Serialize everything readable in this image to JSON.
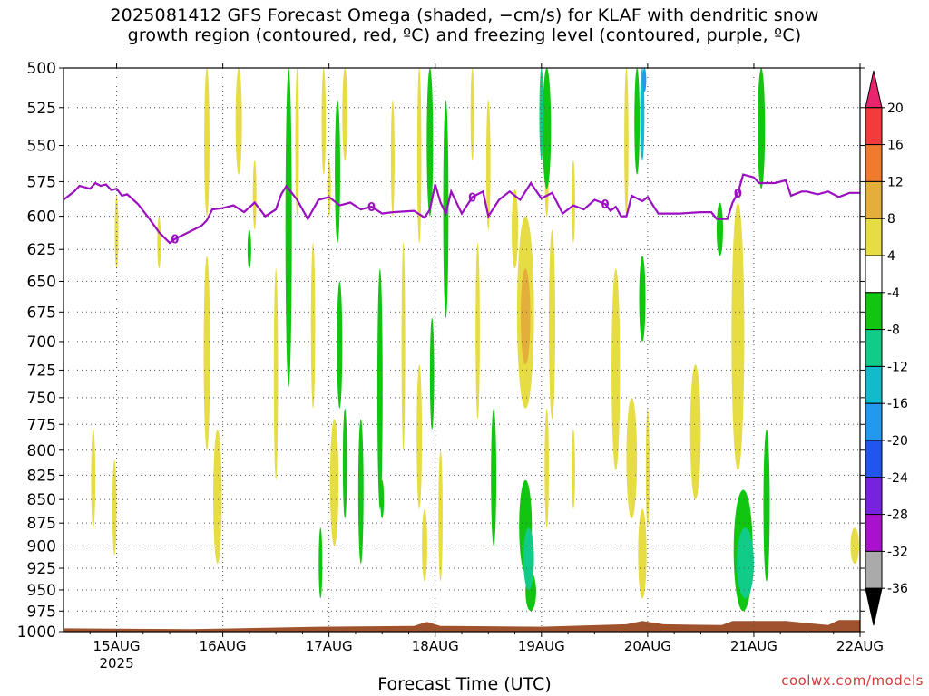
{
  "title_line1": "2025081412 GFS Forecast Omega (shaded, −cm/s) for KLAF with dendritic snow",
  "title_line2": "growth region (contoured, red, ºC) and freezing level (contoured, purple, ºC)",
  "xlabel": "Forecast Time (UTC)",
  "credit": "coolwx.com/models",
  "chart_data": {
    "type": "heatmap",
    "y_axis": {
      "label": "",
      "ticks": [
        500,
        525,
        550,
        575,
        600,
        625,
        650,
        675,
        700,
        725,
        750,
        775,
        800,
        825,
        850,
        875,
        900,
        925,
        950,
        975,
        1000
      ],
      "range": [
        500,
        1000
      ],
      "scale": "log-pressure",
      "inverted": true
    },
    "x_axis": {
      "ticks": [
        {
          "date": "15AUG",
          "year": "2025",
          "day": 15
        },
        {
          "date": "16AUG",
          "day": 16
        },
        {
          "date": "17AUG",
          "day": 17
        },
        {
          "date": "18AUG",
          "day": 18
        },
        {
          "date": "19AUG",
          "day": 19
        },
        {
          "date": "20AUG",
          "day": 20
        },
        {
          "date": "21AUG",
          "day": 21
        },
        {
          "date": "22AUG",
          "day": 22
        }
      ],
      "range": [
        "2025-08-14 12Z",
        "2025-08-22 00Z"
      ]
    },
    "grid": true,
    "colorbar": {
      "levels": [
        "20",
        "16",
        "12",
        "8",
        "4",
        "-4",
        "-8",
        "-12",
        "-16",
        "-20",
        "-24",
        "-28",
        "-32",
        "-36"
      ],
      "colors": [
        "#e8246e",
        "#f23c3c",
        "#f07a2d",
        "#e4ae3a",
        "#e6dc44",
        "#ffffff",
        "#11c511",
        "#11cc88",
        "#11bbcc",
        "#2299ee",
        "#2255ee",
        "#7722dd",
        "#aa11cc",
        "#aaaaaa",
        "#000000"
      ]
    },
    "freezing_level": {
      "label": "0",
      "color": "#9a10c0",
      "points": [
        [
          14.5,
          588
        ],
        [
          14.6,
          582
        ],
        [
          14.65,
          578
        ],
        [
          14.75,
          580
        ],
        [
          14.8,
          576
        ],
        [
          14.85,
          578
        ],
        [
          14.9,
          577
        ],
        [
          14.95,
          581
        ],
        [
          15.0,
          580
        ],
        [
          15.05,
          585
        ],
        [
          15.1,
          584
        ],
        [
          15.2,
          591
        ],
        [
          15.3,
          601
        ],
        [
          15.4,
          612
        ],
        [
          15.5,
          620
        ],
        [
          15.55,
          617
        ],
        [
          15.7,
          611
        ],
        [
          15.8,
          607
        ],
        [
          15.85,
          603
        ],
        [
          15.9,
          595
        ],
        [
          16.0,
          594
        ],
        [
          16.1,
          592
        ],
        [
          16.2,
          597
        ],
        [
          16.3,
          590
        ],
        [
          16.4,
          600
        ],
        [
          16.5,
          595
        ],
        [
          16.55,
          584
        ],
        [
          16.6,
          578
        ],
        [
          16.7,
          588
        ],
        [
          16.8,
          602
        ],
        [
          16.9,
          588
        ],
        [
          17.0,
          586
        ],
        [
          17.1,
          592
        ],
        [
          17.2,
          590
        ],
        [
          17.3,
          595
        ],
        [
          17.4,
          593
        ],
        [
          17.5,
          598
        ],
        [
          17.6,
          597
        ],
        [
          17.8,
          596
        ],
        [
          17.9,
          601
        ],
        [
          17.95,
          595
        ],
        [
          18.0,
          577
        ],
        [
          18.05,
          590
        ],
        [
          18.1,
          598
        ],
        [
          18.15,
          582
        ],
        [
          18.25,
          598
        ],
        [
          18.35,
          586
        ],
        [
          18.45,
          582
        ],
        [
          18.5,
          600
        ],
        [
          18.6,
          588
        ],
        [
          18.7,
          582
        ],
        [
          18.8,
          588
        ],
        [
          18.9,
          576
        ],
        [
          19.0,
          587
        ],
        [
          19.1,
          583
        ],
        [
          19.2,
          598
        ],
        [
          19.3,
          592
        ],
        [
          19.4,
          595
        ],
        [
          19.5,
          588
        ],
        [
          19.6,
          591
        ],
        [
          19.65,
          596
        ],
        [
          19.7,
          593
        ],
        [
          19.75,
          600
        ],
        [
          19.8,
          600
        ],
        [
          19.85,
          585
        ],
        [
          19.95,
          589
        ],
        [
          20.0,
          586
        ],
        [
          20.1,
          598
        ],
        [
          20.3,
          598
        ],
        [
          20.5,
          597
        ],
        [
          20.6,
          597
        ],
        [
          20.65,
          602
        ],
        [
          20.75,
          602
        ],
        [
          20.8,
          590
        ],
        [
          20.85,
          583
        ],
        [
          20.9,
          570
        ],
        [
          21.0,
          572
        ],
        [
          21.05,
          576
        ],
        [
          21.2,
          576
        ],
        [
          21.3,
          574
        ],
        [
          21.35,
          585
        ],
        [
          21.45,
          582
        ],
        [
          21.5,
          582
        ],
        [
          21.6,
          584
        ],
        [
          21.7,
          582
        ],
        [
          21.8,
          586
        ],
        [
          21.9,
          583
        ],
        [
          22.0,
          583
        ]
      ]
    },
    "omega_regions": [
      {
        "value_class": 4,
        "x": 15.0,
        "p": [
          585,
          640
        ],
        "w": 0.03
      },
      {
        "value_class": 4,
        "x": 15.4,
        "p": [
          600,
          640
        ],
        "w": 0.02
      },
      {
        "value_class": 4,
        "x": 14.78,
        "p": [
          780,
          880
        ],
        "w": 0.04
      },
      {
        "value_class": 4,
        "x": 14.98,
        "p": [
          810,
          910
        ],
        "w": 0.04
      },
      {
        "value_class": 4,
        "x": 15.85,
        "p": [
          500,
          600
        ],
        "w": 0.05
      },
      {
        "value_class": 4,
        "x": 16.15,
        "p": [
          500,
          570
        ],
        "w": 0.06
      },
      {
        "value_class": 4,
        "x": 15.85,
        "p": [
          630,
          800
        ],
        "w": 0.06
      },
      {
        "value_class": 4,
        "x": 15.95,
        "p": [
          780,
          920
        ],
        "w": 0.08
      },
      {
        "value_class": 4,
        "x": 16.5,
        "p": [
          640,
          830
        ],
        "w": 0.04
      },
      {
        "value_class": 4,
        "x": 16.3,
        "p": [
          560,
          610
        ],
        "w": 0.03
      },
      {
        "value_class": 4,
        "x": 16.7,
        "p": [
          500,
          600
        ],
        "w": 0.03
      },
      {
        "value_class": 4,
        "x": 16.85,
        "p": [
          620,
          760
        ],
        "w": 0.04
      },
      {
        "value_class": 4,
        "x": 16.95,
        "p": [
          500,
          570
        ],
        "w": 0.04
      },
      {
        "value_class": 4,
        "x": 17.15,
        "p": [
          500,
          560
        ],
        "w": 0.05
      },
      {
        "value_class": 4,
        "x": 17.05,
        "p": [
          770,
          900
        ],
        "w": 0.08
      },
      {
        "value_class": 4,
        "x": 17.0,
        "p": [
          560,
          600
        ],
        "w": 0.03
      },
      {
        "value_class": 4,
        "x": 17.6,
        "p": [
          520,
          600
        ],
        "w": 0.03
      },
      {
        "value_class": 4,
        "x": 17.7,
        "p": [
          620,
          800
        ],
        "w": 0.03
      },
      {
        "value_class": 4,
        "x": 17.85,
        "p": [
          500,
          620
        ],
        "w": 0.04
      },
      {
        "value_class": 4,
        "x": 17.85,
        "p": [
          720,
          860
        ],
        "w": 0.05
      },
      {
        "value_class": 4,
        "x": 17.9,
        "p": [
          860,
          940
        ],
        "w": 0.05
      },
      {
        "value_class": 4,
        "x": 18.05,
        "p": [
          800,
          940
        ],
        "w": 0.04
      },
      {
        "value_class": 4,
        "x": 18.35,
        "p": [
          500,
          560
        ],
        "w": 0.03
      },
      {
        "value_class": 4,
        "x": 18.5,
        "p": [
          520,
          610
        ],
        "w": 0.04
      },
      {
        "value_class": 4,
        "x": 18.4,
        "p": [
          620,
          770
        ],
        "w": 0.04
      },
      {
        "value_class": 4,
        "x": 18.75,
        "p": [
          580,
          640
        ],
        "w": 0.06
      },
      {
        "value_class": 4,
        "x": 18.85,
        "p": [
          600,
          760
        ],
        "w": 0.16
      },
      {
        "value_class": 4,
        "x": 19.05,
        "p": [
          560,
          600
        ],
        "w": 0.03
      },
      {
        "value_class": 4,
        "x": 19.1,
        "p": [
          610,
          770
        ],
        "w": 0.06
      },
      {
        "value_class": 4,
        "x": 19.05,
        "p": [
          760,
          880
        ],
        "w": 0.04
      },
      {
        "value_class": 4,
        "x": 19.3,
        "p": [
          780,
          860
        ],
        "w": 0.03
      },
      {
        "value_class": 4,
        "x": 19.7,
        "p": [
          640,
          820
        ],
        "w": 0.08
      },
      {
        "value_class": 4,
        "x": 19.85,
        "p": [
          750,
          870
        ],
        "w": 0.1
      },
      {
        "value_class": 4,
        "x": 19.95,
        "p": [
          860,
          960
        ],
        "w": 0.08
      },
      {
        "value_class": 4,
        "x": 19.8,
        "p": [
          500,
          600
        ],
        "w": 0.04
      },
      {
        "value_class": 4,
        "x": 20.0,
        "p": [
          760,
          880
        ],
        "w": 0.03
      },
      {
        "value_class": 4,
        "x": 20.45,
        "p": [
          720,
          850
        ],
        "w": 0.1
      },
      {
        "value_class": 4,
        "x": 20.85,
        "p": [
          590,
          820
        ],
        "w": 0.12
      },
      {
        "value_class": 4,
        "x": 21.95,
        "p": [
          880,
          920
        ],
        "w": 0.08
      },
      {
        "value_class": 4,
        "x": 19.3,
        "p": [
          560,
          620
        ],
        "w": 0.03
      },
      {
        "value_class": 8,
        "x": 18.85,
        "p": [
          640,
          720
        ],
        "w": 0.09
      },
      {
        "value_class": -4,
        "x": 16.62,
        "p": [
          500,
          740
        ],
        "w": 0.06
      },
      {
        "value_class": -4,
        "x": 17.08,
        "p": [
          520,
          620
        ],
        "w": 0.05
      },
      {
        "value_class": -4,
        "x": 17.1,
        "p": [
          650,
          760
        ],
        "w": 0.05
      },
      {
        "value_class": -4,
        "x": 17.15,
        "p": [
          760,
          870
        ],
        "w": 0.04
      },
      {
        "value_class": -4,
        "x": 17.3,
        "p": [
          770,
          920
        ],
        "w": 0.05
      },
      {
        "value_class": -4,
        "x": 17.48,
        "p": [
          640,
          860
        ],
        "w": 0.05
      },
      {
        "value_class": -4,
        "x": 16.25,
        "p": [
          610,
          640
        ],
        "w": 0.02
      },
      {
        "value_class": -4,
        "x": 16.92,
        "p": [
          880,
          960
        ],
        "w": 0.02
      },
      {
        "value_class": -4,
        "x": 17.5,
        "p": [
          830,
          870
        ],
        "w": 0.03
      },
      {
        "value_class": -4,
        "x": 17.95,
        "p": [
          500,
          600
        ],
        "w": 0.06
      },
      {
        "value_class": -4,
        "x": 18.1,
        "p": [
          520,
          680
        ],
        "w": 0.05
      },
      {
        "value_class": -4,
        "x": 17.97,
        "p": [
          680,
          780
        ],
        "w": 0.04
      },
      {
        "value_class": -4,
        "x": 18.55,
        "p": [
          760,
          900
        ],
        "w": 0.05
      },
      {
        "value_class": -4,
        "x": 18.85,
        "p": [
          830,
          930
        ],
        "w": 0.12
      },
      {
        "value_class": -4,
        "x": 18.9,
        "p": [
          930,
          975
        ],
        "w": 0.1
      },
      {
        "value_class": -4,
        "x": 19.05,
        "p": [
          500,
          580
        ],
        "w": 0.08
      },
      {
        "value_class": -4,
        "x": 19.9,
        "p": [
          500,
          570
        ],
        "w": 0.05
      },
      {
        "value_class": -4,
        "x": 19.95,
        "p": [
          630,
          700
        ],
        "w": 0.06
      },
      {
        "value_class": -4,
        "x": 20.68,
        "p": [
          590,
          630
        ],
        "w": 0.06
      },
      {
        "value_class": -4,
        "x": 21.07,
        "p": [
          500,
          580
        ],
        "w": 0.07
      },
      {
        "value_class": -4,
        "x": 20.9,
        "p": [
          840,
          975
        ],
        "w": 0.18
      },
      {
        "value_class": -4,
        "x": 21.12,
        "p": [
          780,
          940
        ],
        "w": 0.06
      },
      {
        "value_class": -8,
        "x": 18.88,
        "p": [
          880,
          950
        ],
        "w": 0.1
      },
      {
        "value_class": -8,
        "x": 20.92,
        "p": [
          880,
          960
        ],
        "w": 0.16
      },
      {
        "value_class": -8,
        "x": 19.0,
        "p": [
          500,
          560
        ],
        "w": 0.04
      },
      {
        "value_class": -12,
        "x": 19.95,
        "p": [
          500,
          560
        ],
        "w": 0.04
      },
      {
        "value_class": -16,
        "x": 19.97,
        "p": [
          500,
          515
        ],
        "w": 0.03
      }
    ]
  }
}
